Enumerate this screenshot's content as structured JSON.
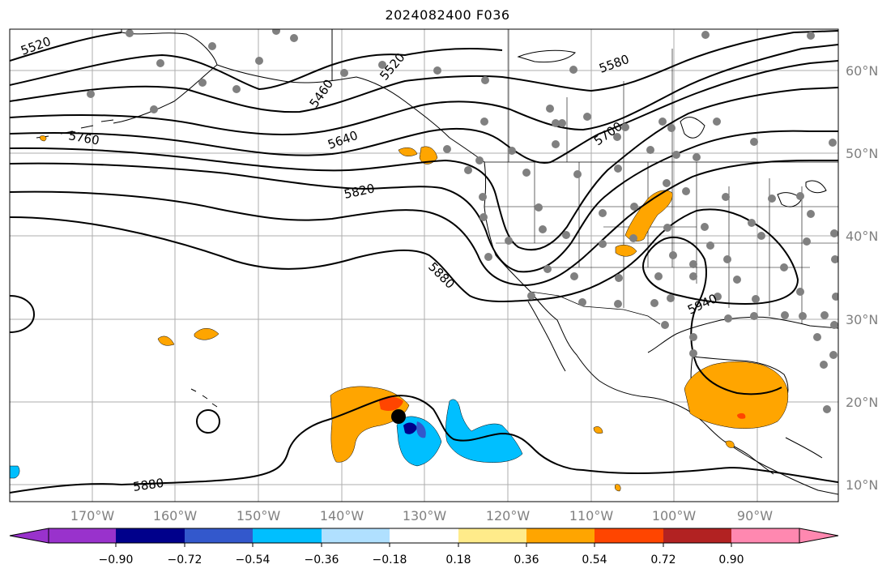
{
  "title": "2024082400 F036",
  "map": {
    "lon_labels": [
      "170°W",
      "160°W",
      "150°W",
      "140°W",
      "130°W",
      "120°W",
      "110°W",
      "100°W",
      "90°W"
    ],
    "lat_labels": [
      "60°N",
      "50°N",
      "40°N",
      "30°N",
      "20°N",
      "10°N"
    ],
    "contour_labels": [
      "5520",
      "5460",
      "5520",
      "5580",
      "5760",
      "5640",
      "5700",
      "5820",
      "5880",
      "5940",
      "5880"
    ]
  },
  "colorbar": {
    "tick_labels": [
      "−0.90",
      "−0.72",
      "−0.54",
      "−0.36",
      "−0.18",
      "0.18",
      "0.36",
      "0.54",
      "0.72",
      "0.90"
    ],
    "colors": [
      "#9932cc",
      "#00008b",
      "#3358cc",
      "#00bfff",
      "#b0e0ff",
      "#ffffff",
      "#ffeb8a",
      "#ffa500",
      "#ff4500",
      "#b22222",
      "#ff88b0"
    ]
  },
  "colors": {
    "contour": "#000000",
    "grid": "#999999",
    "station": "#808080",
    "positive_anomaly": "#ffa500",
    "negative_anomaly": "#00bfff"
  }
}
